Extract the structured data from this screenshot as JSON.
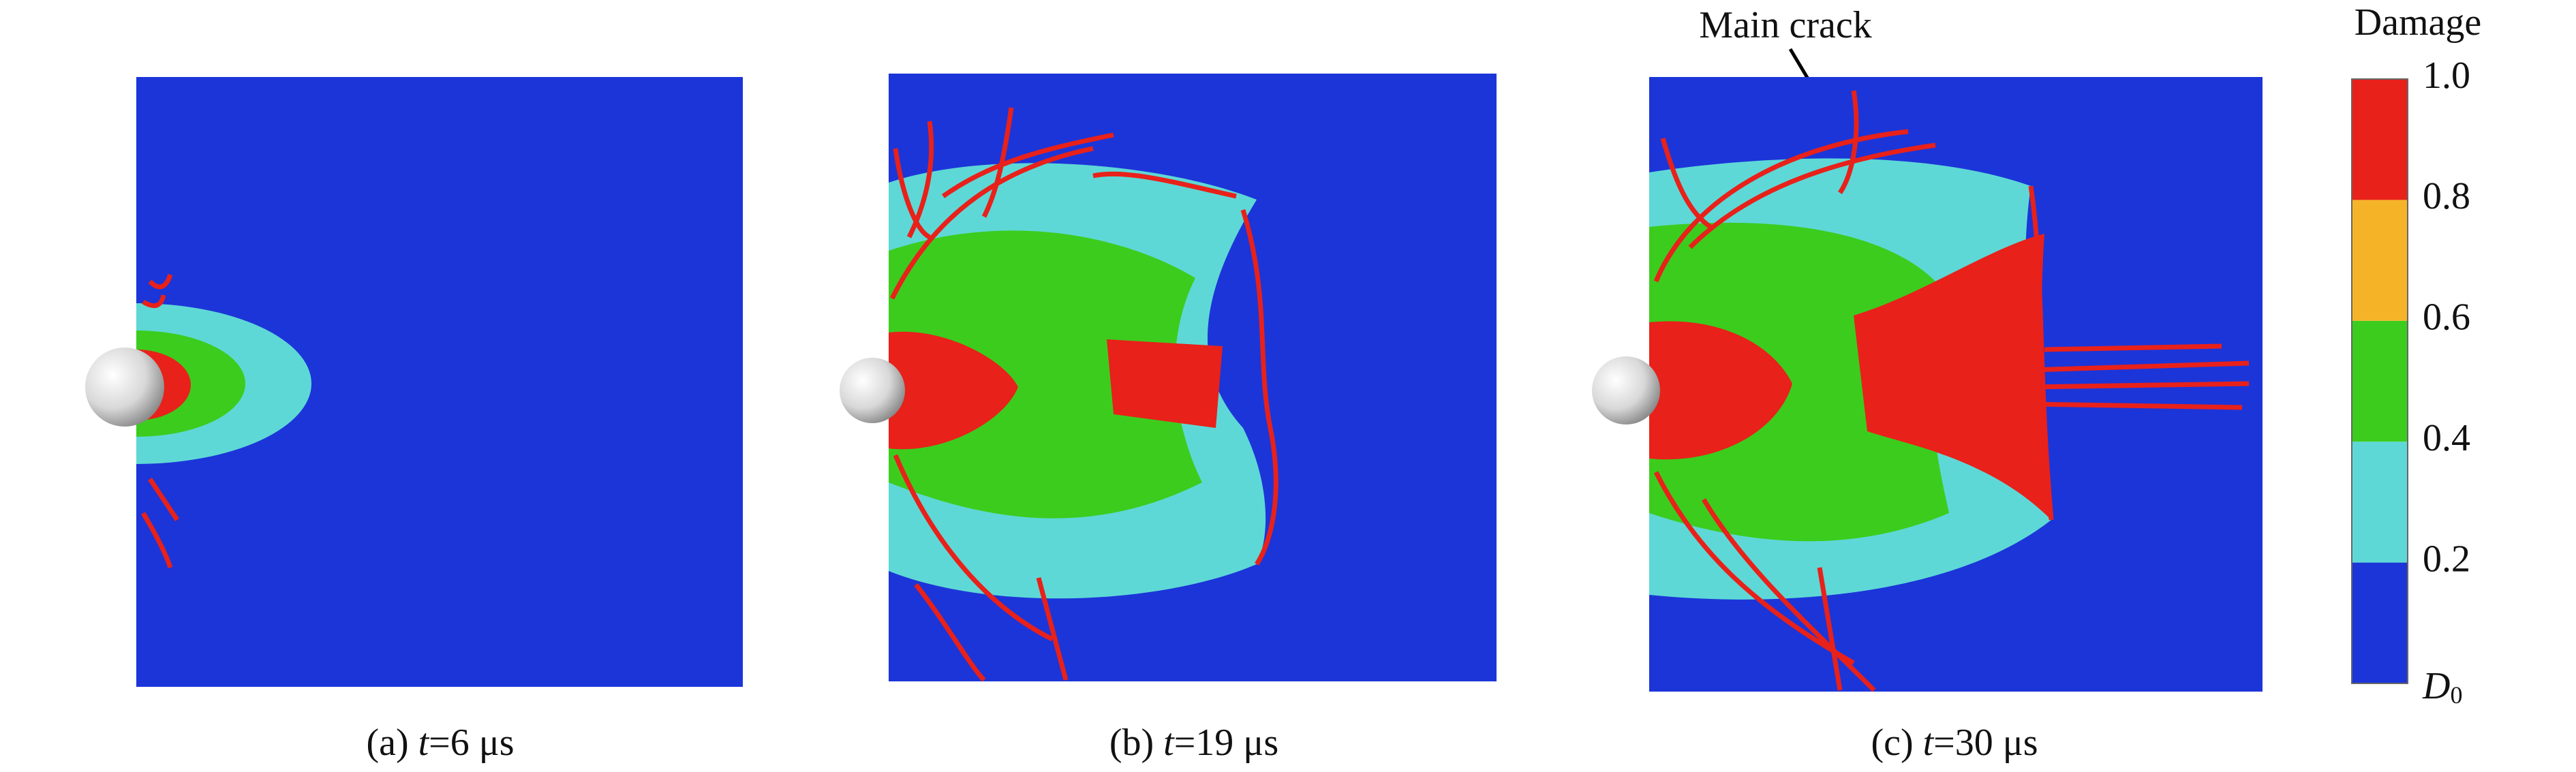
{
  "panels": [
    {
      "caption": {
        "prefix": "(a) ",
        "var": "t",
        "suffix": "=6 μs"
      }
    },
    {
      "caption": {
        "prefix": "(b) ",
        "var": "t",
        "suffix": "=19 μs"
      }
    },
    {
      "caption": {
        "prefix": "(c) ",
        "var": "t",
        "suffix": "=30 μs"
      }
    }
  ],
  "annotation": "Main crack",
  "colorbar": {
    "title": "Damage",
    "colors": [
      "#1c35d8",
      "#5ed8d6",
      "#3ccc1e",
      "#f5b428",
      "#e8211a"
    ],
    "tick_labels": [
      "1.0",
      "0.8",
      "0.6",
      "0.4",
      "0.2"
    ],
    "min_label": {
      "symbol": "D",
      "subscript": "0"
    }
  }
}
